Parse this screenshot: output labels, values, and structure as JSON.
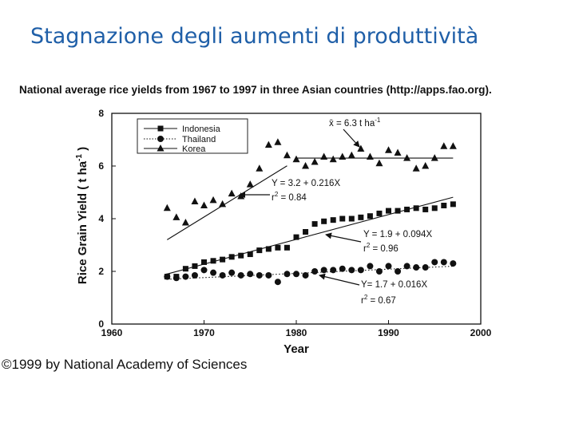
{
  "slide": {
    "title": "Stagnazione degli aumenti di produttività",
    "copyright": "©1999 by National Academy of Sciences"
  },
  "chart_data": {
    "type": "scatter",
    "title": "National average rice yields from 1967 to 1997 in three Asian countries (http://apps.fao.org).",
    "xlabel": "Year",
    "ylabel": "Rice Grain Yield ( t ha-1 )",
    "ylabel_parts": {
      "main": "Rice Grain Yield ( t ha",
      "sup": "-1",
      "close": " )"
    },
    "xlim": [
      1960,
      2000
    ],
    "ylim": [
      0,
      8
    ],
    "xticks": [
      1960,
      1970,
      1980,
      1990,
      2000
    ],
    "yticks": [
      0,
      2,
      4,
      6,
      8
    ],
    "grid": false,
    "legend_position": "top-left",
    "series": [
      {
        "name": "Indonesia",
        "marker": "square",
        "line_style": "solid",
        "x": [
          1966,
          1967,
          1968,
          1969,
          1970,
          1971,
          1972,
          1973,
          1974,
          1975,
          1976,
          1977,
          1978,
          1979,
          1980,
          1981,
          1982,
          1983,
          1984,
          1985,
          1986,
          1987,
          1988,
          1989,
          1990,
          1991,
          1992,
          1993,
          1994,
          1995,
          1996,
          1997
        ],
        "y": [
          1.8,
          1.8,
          2.1,
          2.2,
          2.35,
          2.4,
          2.45,
          2.55,
          2.6,
          2.65,
          2.8,
          2.85,
          2.9,
          2.9,
          3.3,
          3.5,
          3.8,
          3.9,
          3.95,
          4.0,
          4.0,
          4.05,
          4.1,
          4.2,
          4.3,
          4.3,
          4.35,
          4.4,
          4.35,
          4.4,
          4.5,
          4.55
        ]
      },
      {
        "name": "Thailand",
        "marker": "circle",
        "line_style": "dotted",
        "x": [
          1966,
          1967,
          1968,
          1969,
          1970,
          1971,
          1972,
          1973,
          1974,
          1975,
          1976,
          1977,
          1978,
          1979,
          1980,
          1981,
          1982,
          1983,
          1984,
          1985,
          1986,
          1987,
          1988,
          1989,
          1990,
          1991,
          1992,
          1993,
          1994,
          1995,
          1996,
          1997
        ],
        "y": [
          1.8,
          1.75,
          1.8,
          1.85,
          2.05,
          1.95,
          1.85,
          1.95,
          1.85,
          1.9,
          1.85,
          1.85,
          1.6,
          1.9,
          1.9,
          1.85,
          2.0,
          2.05,
          2.05,
          2.1,
          2.05,
          2.05,
          2.2,
          2.0,
          2.2,
          2.0,
          2.2,
          2.15,
          2.15,
          2.35,
          2.35,
          2.3
        ]
      },
      {
        "name": "Korea",
        "marker": "triangle",
        "line_style": "solid",
        "x": [
          1966,
          1967,
          1968,
          1969,
          1970,
          1971,
          1972,
          1973,
          1974,
          1975,
          1976,
          1977,
          1978,
          1979,
          1980,
          1981,
          1982,
          1983,
          1984,
          1985,
          1986,
          1987,
          1988,
          1989,
          1990,
          1991,
          1992,
          1993,
          1994,
          1995,
          1996,
          1997
        ],
        "y": [
          4.4,
          4.05,
          3.85,
          4.65,
          4.5,
          4.7,
          4.55,
          4.95,
          4.85,
          5.3,
          5.9,
          6.8,
          6.9,
          6.4,
          6.25,
          6.0,
          6.15,
          6.35,
          6.25,
          6.35,
          6.4,
          6.65,
          6.35,
          6.1,
          6.6,
          6.5,
          6.3,
          5.9,
          6.0,
          6.3,
          6.75,
          6.75
        ]
      }
    ],
    "regressions": [
      {
        "series": "Korea",
        "period": [
          1966,
          1979
        ],
        "intercept": 3.2,
        "slope": 0.216
      },
      {
        "series": "Korea",
        "period": [
          1980,
          1997
        ],
        "mean": 6.3
      },
      {
        "series": "Indonesia",
        "period": [
          1966,
          1997
        ],
        "intercept": 1.9,
        "slope": 0.094
      },
      {
        "series": "Thailand",
        "period": [
          1966,
          1997
        ],
        "intercept": 1.7,
        "slope": 0.016
      }
    ],
    "annotations": {
      "korea_mean": {
        "text": "x̄ = 6.3 t ha",
        "sup": "-1"
      },
      "korea_eq": {
        "eq": "Y = 3.2 + 0.216X",
        "r2_label": "r",
        "r2_value": " = 0.84"
      },
      "indonesia_eq": {
        "eq": "Y = 1.9 + 0.094X",
        "r2_label": "r",
        "r2_value": " = 0.96"
      },
      "thailand_eq": {
        "eq": "Y= 1.7 + 0.016X",
        "r2_label": "r",
        "r2_value": " = 0.67"
      },
      "r2_sup": "2"
    }
  }
}
